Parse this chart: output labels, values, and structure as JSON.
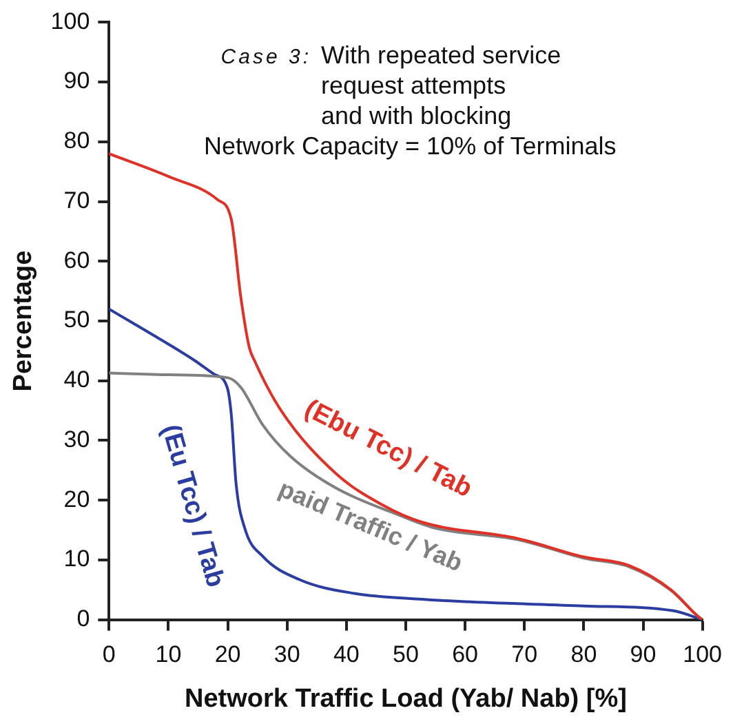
{
  "chart_data": {
    "type": "line",
    "xlabel": "Network Traffic Load (Yab/ Nab) [%]",
    "ylabel": "Percentage",
    "annotations": [
      "Case 3:",
      "With repeated service",
      "request attempts",
      "and with blocking",
      "Network Capacity = 10% of Terminals"
    ],
    "xlim": [
      0,
      100
    ],
    "xticks": [
      0,
      10,
      20,
      30,
      40,
      50,
      60,
      70,
      80,
      90,
      100
    ],
    "ylim": [
      0,
      100
    ],
    "yticks": [
      0,
      10,
      20,
      30,
      40,
      50,
      60,
      70,
      80,
      90,
      100
    ],
    "grid": false,
    "legend": false,
    "marker": "none",
    "line_style": "solid",
    "series": [
      {
        "name": "(Ebu Tcc) / Tab",
        "color": "#e03127",
        "x": [
          0,
          10,
          18.3,
          20.6,
          22.2,
          23.6,
          24.5,
          29,
          38.3,
          45.9,
          52.8,
          68.8,
          80,
          87.8,
          94.7,
          99.3,
          100
        ],
        "values": [
          78,
          74.2,
          70.3,
          67,
          54,
          45.7,
          43.4,
          35,
          24.4,
          19.3,
          16.3,
          13.6,
          10.5,
          9,
          5,
          0.5,
          0
        ]
      },
      {
        "name": "paid Traffic / Yab",
        "color": "#808080",
        "x": [
          0,
          10,
          20,
          22.2,
          25.9,
          30.5,
          38.3,
          48.9,
          55,
          68.8,
          80,
          87.8,
          94.7,
          99.3,
          100
        ],
        "values": [
          41.3,
          41,
          40.5,
          38.9,
          32.6,
          27.4,
          22,
          17.5,
          15.3,
          13.4,
          10.3,
          8.8,
          4.9,
          0.5,
          0
        ]
      },
      {
        "name": "(Eu Tcc) / Tab",
        "color": "#2b3da0",
        "x": [
          0,
          10.7,
          14.4,
          17.7,
          19.9,
          20.6,
          21.4,
          22.9,
          25.9,
          32.1,
          41.3,
          52.8,
          60,
          80,
          95,
          100
        ],
        "values": [
          52,
          45.7,
          43.4,
          41.1,
          38.9,
          34.3,
          22.8,
          15.2,
          10.6,
          6.7,
          4.4,
          3.4,
          3,
          2.3,
          1.5,
          0
        ]
      }
    ]
  }
}
